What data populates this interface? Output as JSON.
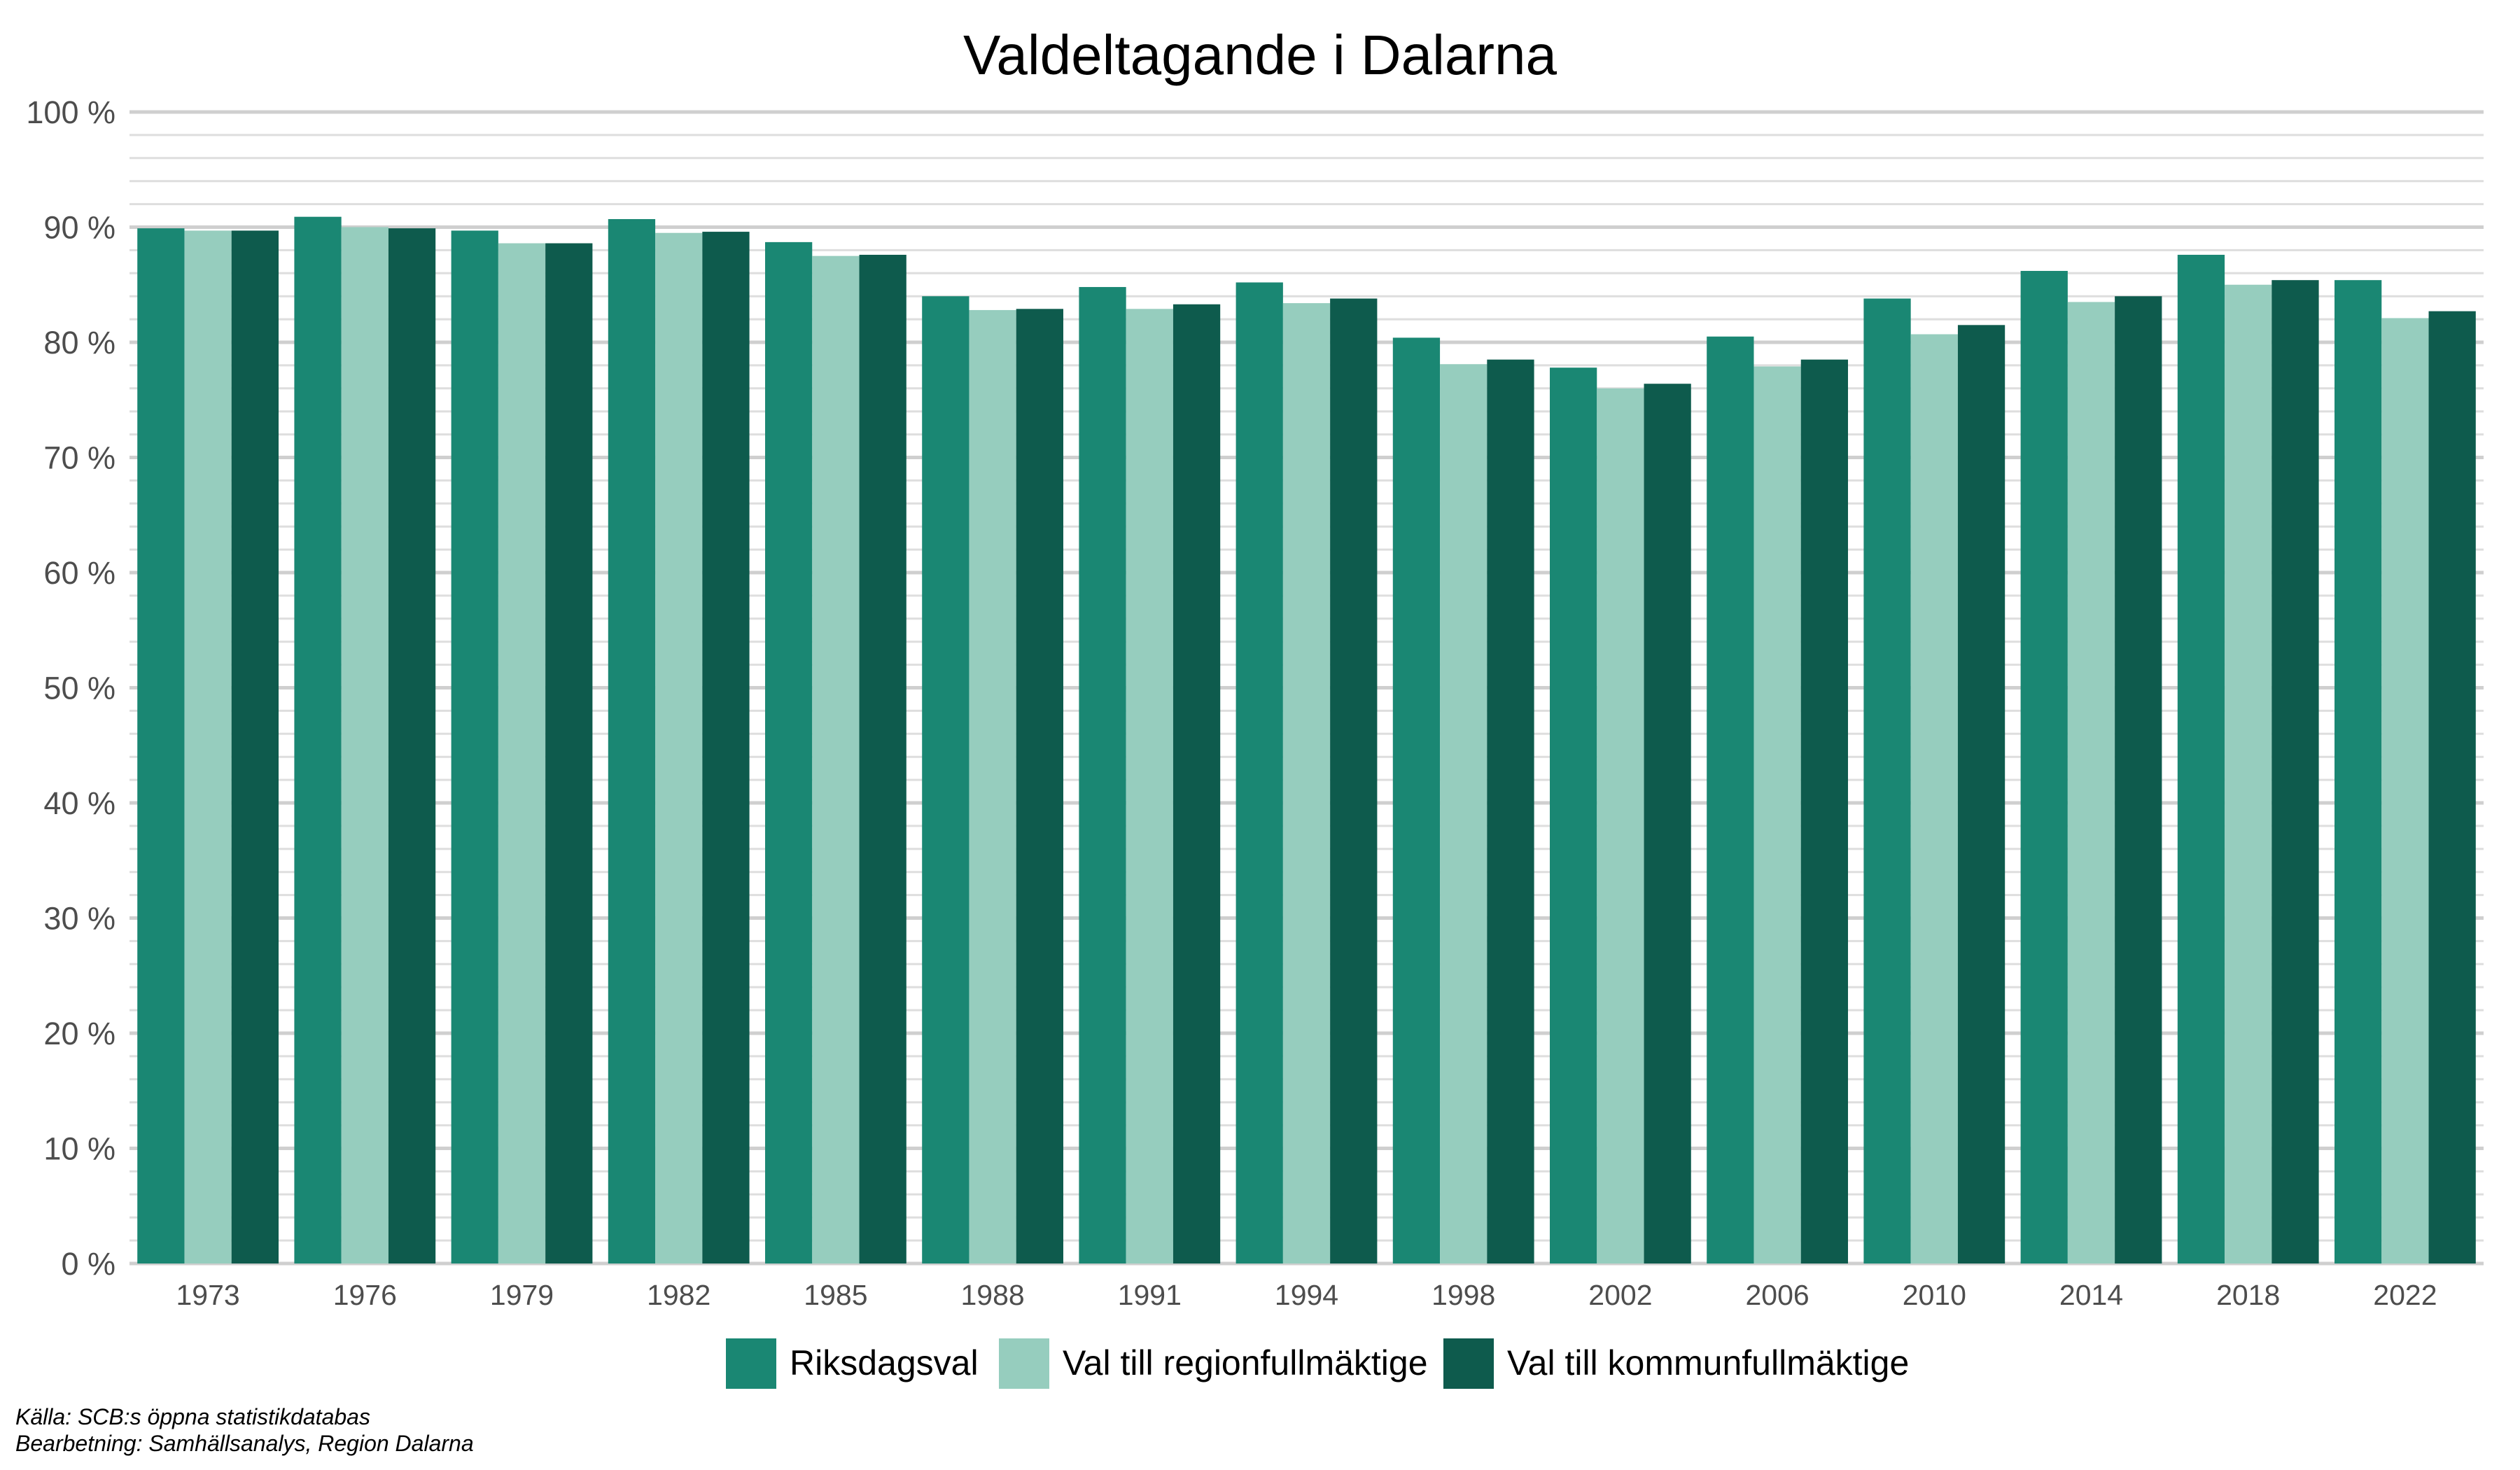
{
  "chart_data": {
    "type": "bar",
    "title": "Valdeltagande i Dalarna",
    "xlabel": "",
    "ylabel": "",
    "ylim": [
      0,
      100
    ],
    "yticks": [
      0,
      10,
      20,
      30,
      40,
      50,
      60,
      70,
      80,
      90,
      100
    ],
    "ytick_labels": [
      "0 %",
      "10 %",
      "20 %",
      "30 %",
      "40 %",
      "50 %",
      "60 %",
      "70 %",
      "80 %",
      "90 %",
      "100 %"
    ],
    "grid": true,
    "legend_position": "bottom",
    "categories": [
      "1973",
      "1976",
      "1979",
      "1982",
      "1985",
      "1988",
      "1991",
      "1994",
      "1998",
      "2002",
      "2006",
      "2010",
      "2014",
      "2018",
      "2022"
    ],
    "series": [
      {
        "name": "Riksdagsval",
        "color": "#1a8773",
        "values": [
          89.9,
          90.9,
          89.7,
          90.7,
          88.7,
          84.0,
          84.8,
          85.2,
          80.4,
          77.8,
          80.5,
          83.8,
          86.2,
          87.6,
          85.4
        ]
      },
      {
        "name": "Val till regionfullmäktige",
        "color": "#96cdbe",
        "values": [
          89.7,
          90.0,
          88.6,
          89.5,
          87.5,
          82.8,
          82.9,
          83.4,
          78.1,
          76.0,
          77.9,
          80.7,
          83.5,
          85.0,
          82.1
        ]
      },
      {
        "name": "Val till kommunfullmäktige",
        "color": "#0e5b4d",
        "values": [
          89.7,
          89.9,
          88.6,
          89.6,
          87.6,
          82.9,
          83.3,
          83.8,
          78.5,
          76.4,
          78.5,
          81.5,
          84.0,
          85.4,
          82.7
        ]
      }
    ]
  },
  "source_note": "Källa: SCB:s öppna statistikdatabas",
  "processing_note": "Bearbetning: Samhällsanalys, Region Dalarna"
}
